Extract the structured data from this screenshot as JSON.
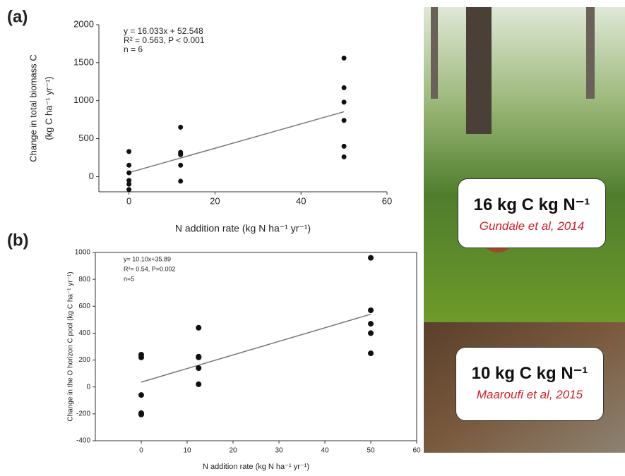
{
  "chart_data": [
    {
      "type": "scatter",
      "label": "(a)",
      "annotations": [
        "y = 16.033x + 52.548",
        "R² = 0.563, P < 0.001",
        "n = 6"
      ],
      "fit": {
        "slope": 16.033,
        "intercept": 52.548
      },
      "xlabel": "N addition rate (kg N ha⁻¹ yr⁻¹)",
      "ylabel": [
        "Change in total biomass C",
        "(kg C ha⁻¹ yr⁻¹)"
      ],
      "x": [
        0,
        0,
        0,
        0,
        0,
        0,
        12,
        12,
        12,
        12,
        12,
        12,
        50,
        50,
        50,
        50,
        50,
        50
      ],
      "values": [
        330,
        150,
        50,
        -50,
        -100,
        -170,
        650,
        320,
        300,
        290,
        150,
        -60,
        1560,
        1170,
        980,
        740,
        400,
        260
      ],
      "color": "#111111",
      "xlim": [
        -7,
        60
      ],
      "xticks": [
        0,
        20,
        40,
        60
      ],
      "ylim": [
        -200,
        2000
      ],
      "yticks": [
        0,
        500,
        1000,
        1500,
        2000
      ]
    },
    {
      "type": "scatter",
      "label": "(b)",
      "annotations": [
        "y= 10.10x+35.89",
        "R²= 0.54, P=0.002",
        "n=5"
      ],
      "fit": {
        "slope": 10.1,
        "intercept": 35.89
      },
      "xlabel": "N addition rate (kg N ha⁻¹ yr⁻¹)",
      "ylabel": [
        "Change in the O horizon C pool (kg C ha⁻¹ yr⁻¹)"
      ],
      "x": [
        0,
        0,
        0,
        0,
        0,
        12.5,
        12.5,
        12.5,
        12.5,
        12.5,
        50,
        50,
        50,
        50,
        50
      ],
      "values": [
        240,
        220,
        -60,
        -195,
        -205,
        440,
        225,
        220,
        140,
        20,
        960,
        570,
        470,
        400,
        250
      ],
      "color": "#111111",
      "xlim": [
        -10,
        60
      ],
      "xticks": [
        0,
        10,
        20,
        30,
        40,
        50,
        60
      ],
      "ylim": [
        -400,
        1000
      ],
      "yticks": [
        -400,
        -200,
        0,
        200,
        400,
        600,
        800,
        1000
      ]
    }
  ],
  "photo_labels": [
    {
      "value": "16 kg C kg N⁻¹",
      "citation": "Gundale et al, 2014"
    },
    {
      "value": "10 kg C kg N⁻¹",
      "citation": "Maaroufi et al, 2015"
    }
  ]
}
